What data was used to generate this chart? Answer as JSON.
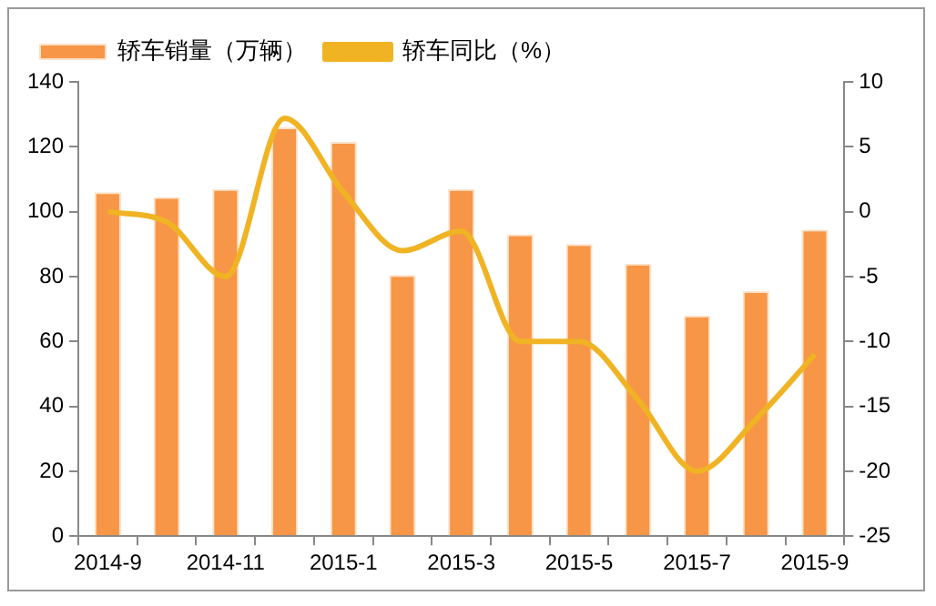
{
  "chart_data": {
    "type": "bar",
    "categories": [
      "2014-9",
      null,
      "2014-11",
      null,
      "2015-1",
      null,
      "2015-3",
      null,
      "2015-5",
      null,
      "2015-7",
      null,
      "2015-9"
    ],
    "series": [
      {
        "name": "轿车销量（万辆）",
        "color": "#f79646",
        "values": [
          106,
          104.5,
          107,
          126,
          121.5,
          80.5,
          107,
          93,
          90,
          84,
          68,
          75.5,
          94.5
        ]
      },
      {
        "name": "轿车同比（%）",
        "type": "line",
        "axis": "y2",
        "color": "#f0b323",
        "values": [
          0,
          -0.8,
          -5,
          7.2,
          1.5,
          -3,
          -1.5,
          -10,
          -10,
          -14.5,
          -20,
          -16,
          -11
        ]
      }
    ],
    "ylim": [
      0,
      140
    ],
    "yticks": [
      0,
      20,
      40,
      60,
      80,
      100,
      120,
      140
    ],
    "y2lim": [
      -25,
      10
    ],
    "y2ticks": [
      -25,
      -20,
      -15,
      -10,
      -5,
      0,
      5,
      10
    ],
    "grid": false,
    "legend": "top left",
    "marker": "none",
    "line_style": "solid"
  }
}
